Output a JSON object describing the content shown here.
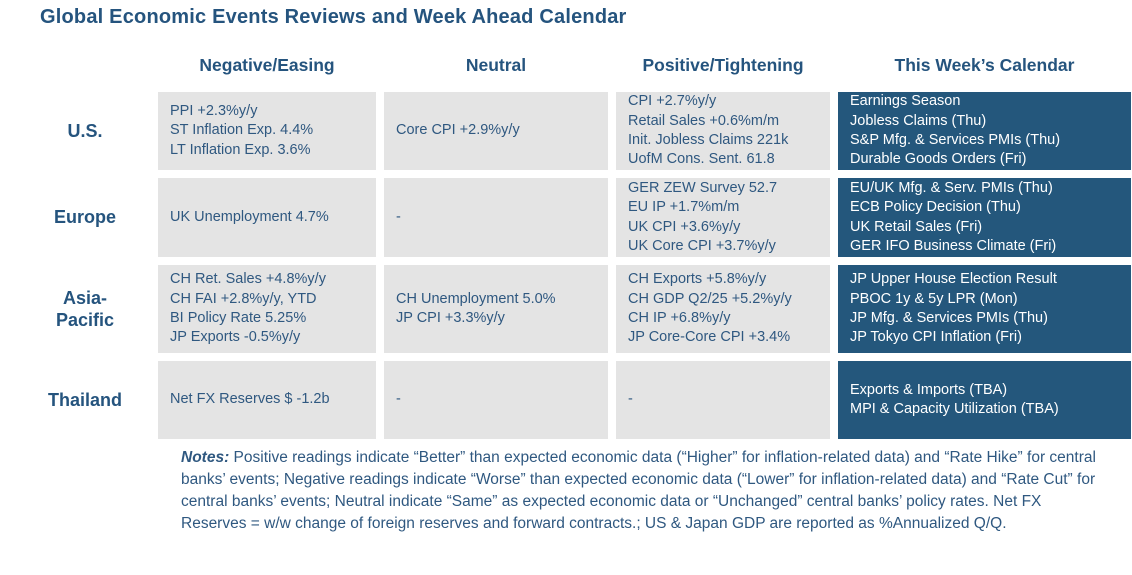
{
  "title": "Global Economic Events Reviews and Week Ahead Calendar",
  "table": {
    "columns": [
      "Negative/Easing",
      "Neutral",
      "Positive/Tightening",
      "This Week’s Calendar"
    ],
    "rows": [
      {
        "region": "U.S.",
        "negative": [
          "PPI +2.3%y/y",
          "ST Inflation Exp. 4.4%",
          "LT Inflation Exp. 3.6%"
        ],
        "neutral": [
          "Core CPI +2.9%y/y"
        ],
        "positive": [
          "CPI +2.7%y/y",
          "Retail Sales +0.6%m/m",
          "Init. Jobless Claims 221k",
          "UofM Cons. Sent. 61.8"
        ],
        "calendar": [
          "Earnings Season",
          "Jobless Claims (Thu)",
          "S&P Mfg. & Services PMIs (Thu)",
          "Durable Goods Orders (Fri)"
        ]
      },
      {
        "region": "Europe",
        "negative": [
          "UK Unemployment 4.7%"
        ],
        "neutral": [
          "-"
        ],
        "positive": [
          "GER ZEW Survey 52.7",
          "EU IP +1.7%m/m",
          "UK CPI +3.6%y/y",
          "UK Core CPI +3.7%y/y"
        ],
        "calendar": [
          "EU/UK Mfg. & Serv. PMIs (Thu)",
          "ECB Policy Decision (Thu)",
          "UK Retail Sales (Fri)",
          "GER IFO Business Climate (Fri)"
        ]
      },
      {
        "region": "Asia-\nPacific",
        "negative": [
          "CH Ret. Sales +4.8%y/y",
          "CH FAI +2.8%y/y, YTD",
          "BI Policy Rate 5.25%",
          "JP Exports -0.5%y/y"
        ],
        "neutral": [
          "CH Unemployment 5.0%",
          "JP CPI +3.3%y/y"
        ],
        "positive": [
          "CH Exports +5.8%y/y",
          "CH GDP Q2/25 +5.2%y/y",
          "CH IP +6.8%y/y",
          "JP Core-Core CPI +3.4%"
        ],
        "calendar": [
          "JP Upper House Election Result",
          "PBOC 1y & 5y LPR (Mon)",
          "JP Mfg. & Services PMIs (Thu)",
          "JP Tokyo CPI Inflation (Fri)"
        ]
      },
      {
        "region": "Thailand",
        "negative": [
          "Net FX Reserves $ -1.2b"
        ],
        "neutral": [
          "-"
        ],
        "positive": [
          "-"
        ],
        "calendar": [
          "Exports & Imports (TBA)",
          "MPI & Capacity Utilization (TBA)"
        ]
      }
    ]
  },
  "notes": {
    "label": "Notes:",
    "text": " Positive readings indicate “Better” than expected economic data (“Higher” for inflation-related data) and “Rate Hike” for central banks’ events; Negative readings indicate “Worse” than expected economic data (“Lower” for inflation-related data) and “Rate Cut” for central banks’ events; Neutral indicate “Same” as expected economic data or “Unchanged” central banks’ policy rates. Net FX Reserves = w/w change of foreign reserves and forward contracts.; US & Japan GDP are reported as %Annualized Q/Q."
  },
  "colors": {
    "accent_navy": "#25547E",
    "cell_text_navy": "#2F5880",
    "calendar_cell_bg": "#24577C",
    "review_cell_bg": "#E4E4E4"
  }
}
